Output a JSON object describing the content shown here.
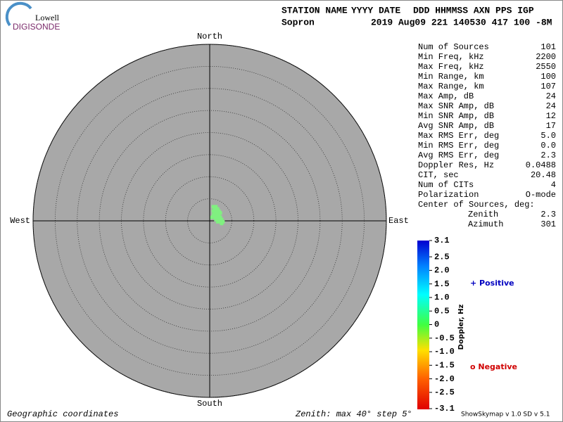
{
  "header": {
    "logo_top": "Lowell",
    "logo_bottom": "DIGISONDE",
    "station_label": "STATION NAME",
    "date_label": "YYYY DATE",
    "time_label": "DDD HHMMSS AXN PPS IGP",
    "station": "Sopron",
    "date_time": "2019 Aug09 221 140530 417 100 -8M"
  },
  "stats": {
    "rows": [
      [
        "Num of Sources",
        "101"
      ],
      [
        "Min Freq, kHz",
        "2200"
      ],
      [
        "Max Freq, kHz",
        "2550"
      ],
      [
        "Min Range, km",
        "100"
      ],
      [
        "Max Range, km",
        "107"
      ],
      [
        "Max Amp, dB",
        "24"
      ],
      [
        "Max SNR Amp, dB",
        "24"
      ],
      [
        "Min SNR Amp, dB",
        "12"
      ],
      [
        "Avg SNR Amp, dB",
        "17"
      ],
      [
        "Max RMS Err, deg",
        "5.0"
      ],
      [
        "Min RMS Err, deg",
        "0.0"
      ],
      [
        "Avg RMS Err, deg",
        "2.3"
      ],
      [
        "Doppler Res, Hz",
        "0.0488"
      ],
      [
        "CIT, sec",
        "20.48"
      ],
      [
        "Num of CITs",
        "4"
      ],
      [
        "Polarization",
        "O-mode"
      ]
    ],
    "center_label": "Center of Sources, deg:",
    "center_rows": [
      [
        "Zenith",
        "2.3"
      ],
      [
        "Azimuth",
        "301"
      ]
    ]
  },
  "chart_data": {
    "type": "skymap",
    "directions": {
      "north": "North",
      "south": "South",
      "east": "East",
      "west": "West"
    },
    "rlim": [
      0,
      40
    ],
    "rticks": [
      5,
      10,
      15,
      20,
      25,
      30,
      35,
      40
    ],
    "series": [
      {
        "color": "#80f080",
        "x": [
          0.8,
          1.4,
          1.1,
          1.8,
          0.8,
          1.4,
          2.1,
          1.1,
          1.8,
          2.4,
          0.8,
          1.4,
          2.1,
          0.5,
          1.1,
          1.8,
          2.4,
          1.4,
          2.1,
          2.7,
          1.8,
          2.4,
          3.0,
          2.7
        ],
        "y": [
          3.2,
          3.2,
          2.7,
          2.7,
          2.2,
          2.2,
          2.2,
          1.8,
          1.8,
          1.8,
          1.3,
          1.3,
          1.3,
          0.8,
          0.8,
          0.8,
          0.8,
          0.3,
          0.3,
          0.3,
          -0.2,
          -0.2,
          -0.2,
          -0.6
        ]
      }
    ],
    "colorbar": {
      "label": "Doppler, Hz",
      "lim": [
        -3.1,
        3.1
      ],
      "ticks": [
        3.1,
        2.5,
        {
          "value": 2,
          "label": "2.0"
        },
        1.5,
        {
          "value": 1,
          "label": "1.0"
        },
        0.5,
        0,
        -0.5,
        {
          "value": -1,
          "label": "-1.0"
        },
        -1.5,
        {
          "value": -2,
          "label": "-2.0"
        },
        -2.5,
        -3.1
      ]
    },
    "legend": {
      "positive": "+ Positive",
      "negative": "o Negative"
    }
  },
  "footer": {
    "coords": "Geographic coordinates",
    "zenith": "Zenith: max 40°  step 5°",
    "version": "ShowSkymap v 1.0  SD v 5.1"
  }
}
